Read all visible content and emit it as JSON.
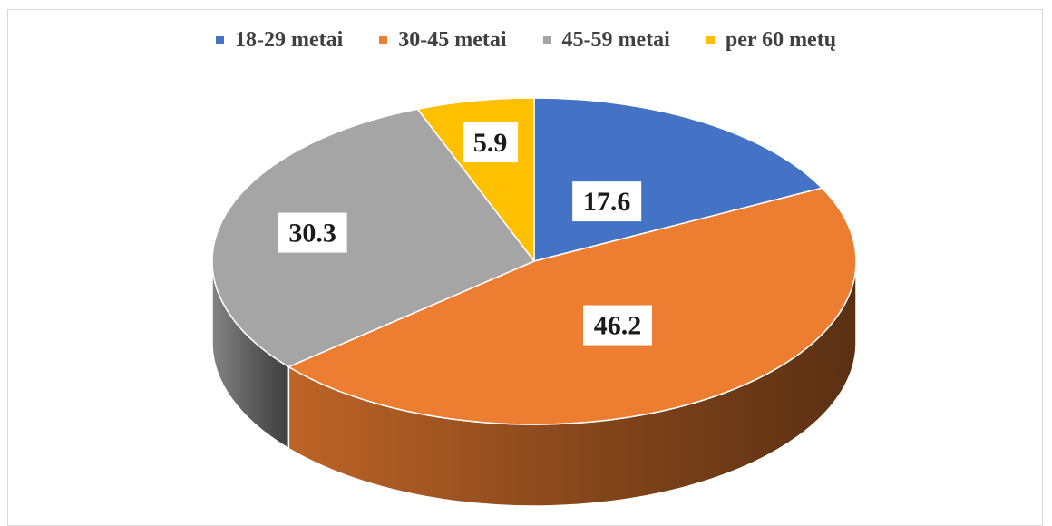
{
  "chart_data": {
    "type": "pie",
    "style": "3d",
    "legend_position": "top",
    "categories": [
      "18-29 metai",
      "30-45 metai",
      "45-59 metai",
      "per 60 metų"
    ],
    "values": [
      17.6,
      46.2,
      30.3,
      5.9
    ],
    "data_labels": [
      "17.6",
      "46.2",
      "30.3",
      "5.9"
    ],
    "colors": [
      "#4472C4",
      "#ED7D31",
      "#A5A5A5",
      "#FFC000"
    ]
  }
}
